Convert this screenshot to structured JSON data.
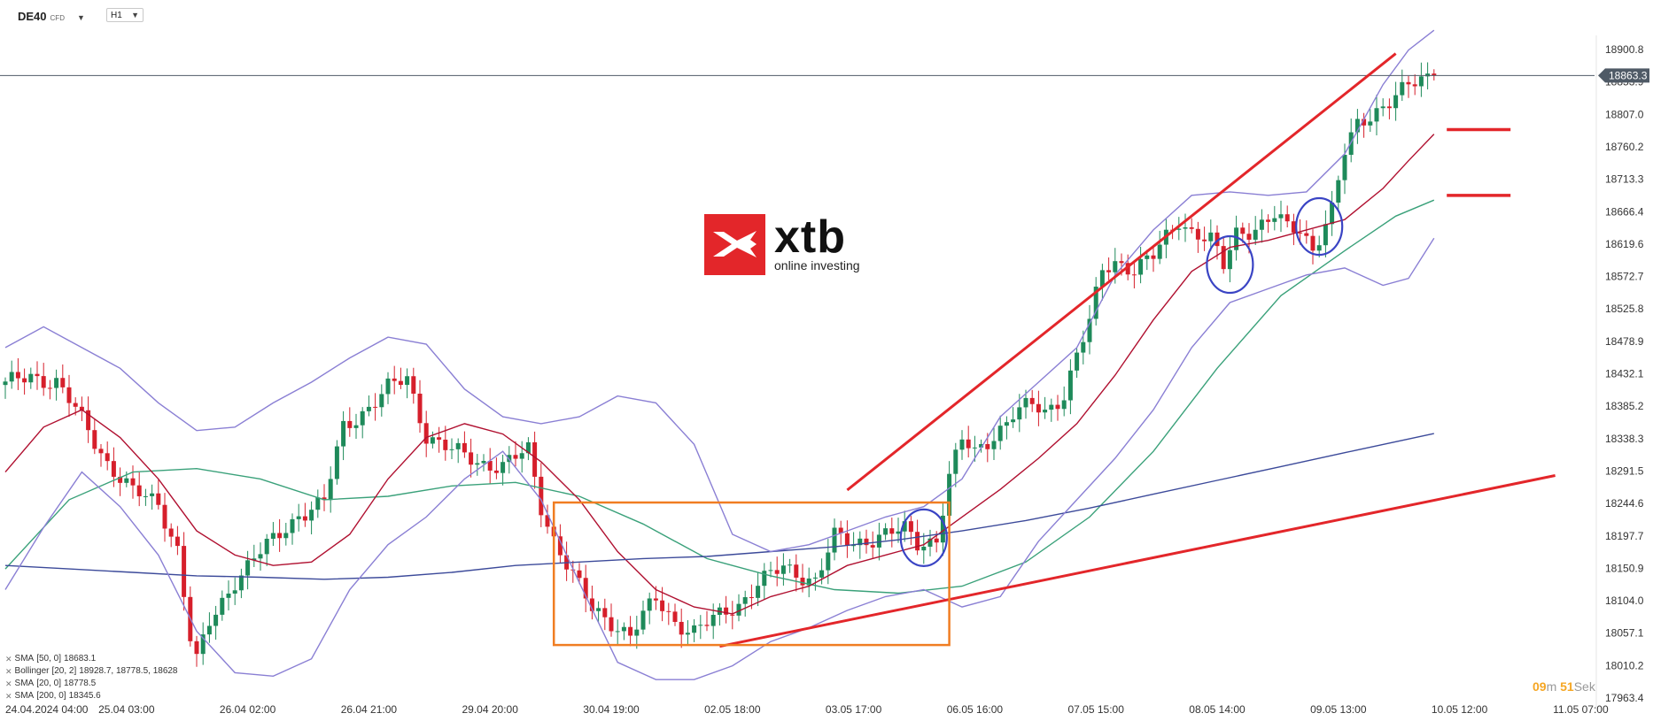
{
  "header": {
    "symbol": "DE40",
    "instrument_type": "CFD",
    "timeframe": "H1"
  },
  "logo": {
    "brand": "xtb",
    "tagline": "online investing",
    "color": "#e3262a"
  },
  "price_axis": {
    "labels": [
      "18900.8",
      "18853.9",
      "18807.0",
      "18760.2",
      "18713.3",
      "18666.4",
      "18619.6",
      "18572.7",
      "18525.8",
      "18478.9",
      "18432.1",
      "18385.2",
      "18338.3",
      "18291.5",
      "18244.6",
      "18197.7",
      "18150.9",
      "18104.0",
      "18057.1",
      "18010.2",
      "17963.4"
    ],
    "current_price": "18863.3"
  },
  "time_axis": {
    "labels": [
      "24.04.2024 04:00",
      "25.04 03:00",
      "26.04 02:00",
      "26.04 21:00",
      "29.04 20:00",
      "30.04 19:00",
      "02.05 18:00",
      "03.05 17:00",
      "06.05 16:00",
      "07.05 15:00",
      "08.05 14:00",
      "09.05 13:00",
      "10.05 12:00",
      "11.05 07:00"
    ]
  },
  "legend": {
    "items": [
      {
        "label": "SMA",
        "params": "[50, 0]",
        "value": "18683.1"
      },
      {
        "label": "Bollinger",
        "params": "[20, 2]",
        "value": "18928.7,  18778.5,  18628"
      },
      {
        "label": "SMA",
        "params": "[20, 0]",
        "value": "18778.5"
      },
      {
        "label": "SMA",
        "params": "[200, 0]",
        "value": "18345.6"
      }
    ]
  },
  "timer": {
    "minutes": "09",
    "m_unit": "m",
    "seconds": "51",
    "s_unit": "Sek"
  },
  "colors": {
    "bull": "#1e8a5a",
    "bear": "#d61f2b",
    "bollinger": "#8a7fd4",
    "sma20": "#b01030",
    "sma50": "#3aa17a",
    "sma200": "#3c4a9a",
    "trend": "#e3262a",
    "box": "#f07d22",
    "circle": "#3a44c4"
  },
  "chart_data": {
    "type": "candlestick",
    "instrument": "DE40",
    "timeframe": "H1",
    "ylim": [
      17963.4,
      18920
    ],
    "y_ticks": [
      18900.8,
      18853.9,
      18807.0,
      18760.2,
      18713.3,
      18666.4,
      18619.6,
      18572.7,
      18525.8,
      18478.9,
      18432.1,
      18385.2,
      18338.3,
      18291.5,
      18244.6,
      18197.7,
      18150.9,
      18104.0,
      18057.1,
      18010.2,
      17963.4
    ],
    "x_ticks": [
      "24.04.2024 04:00",
      "25.04 03:00",
      "26.04 02:00",
      "26.04 21:00",
      "29.04 20:00",
      "30.04 19:00",
      "02.05 18:00",
      "03.05 17:00",
      "06.05 16:00",
      "07.05 15:00",
      "08.05 14:00",
      "09.05 13:00",
      "10.05 12:00",
      "11.05 07:00"
    ],
    "x_tick_index": [
      0,
      19,
      38,
      57,
      76,
      95,
      114,
      133,
      152,
      171,
      190,
      209,
      228,
      247
    ],
    "price_path": [
      [
        0,
        18415
      ],
      [
        4,
        18430
      ],
      [
        8,
        18420
      ],
      [
        12,
        18365
      ],
      [
        16,
        18305
      ],
      [
        20,
        18260
      ],
      [
        24,
        18245
      ],
      [
        27,
        18180
      ],
      [
        29,
        18050
      ],
      [
        30,
        18015
      ],
      [
        32,
        18070
      ],
      [
        36,
        18135
      ],
      [
        39,
        18165
      ],
      [
        42,
        18190
      ],
      [
        46,
        18230
      ],
      [
        50,
        18245
      ],
      [
        53,
        18355
      ],
      [
        57,
        18385
      ],
      [
        60,
        18410
      ],
      [
        63,
        18425
      ],
      [
        66,
        18345
      ],
      [
        70,
        18320
      ],
      [
        74,
        18305
      ],
      [
        78,
        18300
      ],
      [
        82,
        18320
      ],
      [
        84,
        18240
      ],
      [
        86,
        18195
      ],
      [
        89,
        18140
      ],
      [
        92,
        18090
      ],
      [
        95,
        18075
      ],
      [
        98,
        18055
      ],
      [
        102,
        18105
      ],
      [
        105,
        18075
      ],
      [
        108,
        18060
      ],
      [
        111,
        18075
      ],
      [
        115,
        18100
      ],
      [
        118,
        18130
      ],
      [
        122,
        18150
      ],
      [
        127,
        18135
      ],
      [
        130,
        18195
      ],
      [
        133,
        18185
      ],
      [
        137,
        18200
      ],
      [
        141,
        18205
      ],
      [
        143,
        18185
      ],
      [
        146,
        18195
      ],
      [
        148,
        18285
      ],
      [
        150,
        18335
      ],
      [
        152,
        18315
      ],
      [
        155,
        18345
      ],
      [
        158,
        18375
      ],
      [
        161,
        18385
      ],
      [
        163,
        18375
      ],
      [
        166,
        18405
      ],
      [
        168,
        18460
      ],
      [
        170,
        18505
      ],
      [
        172,
        18580
      ],
      [
        174,
        18595
      ],
      [
        177,
        18585
      ],
      [
        180,
        18600
      ],
      [
        184,
        18655
      ],
      [
        186,
        18640
      ],
      [
        189,
        18625
      ],
      [
        191,
        18585
      ],
      [
        193,
        18635
      ],
      [
        196,
        18645
      ],
      [
        199,
        18660
      ],
      [
        201,
        18640
      ],
      [
        203,
        18640
      ],
      [
        205,
        18615
      ],
      [
        208,
        18670
      ],
      [
        210,
        18750
      ],
      [
        212,
        18790
      ],
      [
        215,
        18815
      ],
      [
        218,
        18835
      ],
      [
        220,
        18845
      ],
      [
        222,
        18855
      ],
      [
        224,
        18863.3
      ]
    ],
    "series": [
      {
        "name": "SMA [50, 0]",
        "color": "#3aa17a",
        "points": [
          [
            0,
            18150
          ],
          [
            10,
            18250
          ],
          [
            20,
            18290
          ],
          [
            30,
            18295
          ],
          [
            40,
            18280
          ],
          [
            50,
            18250
          ],
          [
            60,
            18255
          ],
          [
            70,
            18270
          ],
          [
            80,
            18275
          ],
          [
            90,
            18255
          ],
          [
            100,
            18215
          ],
          [
            110,
            18165
          ],
          [
            120,
            18140
          ],
          [
            130,
            18120
          ],
          [
            140,
            18115
          ],
          [
            150,
            18125
          ],
          [
            160,
            18160
          ],
          [
            170,
            18225
          ],
          [
            180,
            18320
          ],
          [
            190,
            18440
          ],
          [
            200,
            18545
          ],
          [
            210,
            18610
          ],
          [
            218,
            18660
          ],
          [
            224,
            18683.1
          ]
        ]
      },
      {
        "name": "SMA [20, 0]",
        "color": "#b01030",
        "points": [
          [
            0,
            18290
          ],
          [
            6,
            18355
          ],
          [
            12,
            18380
          ],
          [
            18,
            18340
          ],
          [
            24,
            18280
          ],
          [
            30,
            18205
          ],
          [
            36,
            18170
          ],
          [
            42,
            18155
          ],
          [
            48,
            18160
          ],
          [
            54,
            18200
          ],
          [
            60,
            18280
          ],
          [
            66,
            18340
          ],
          [
            72,
            18360
          ],
          [
            78,
            18345
          ],
          [
            84,
            18305
          ],
          [
            90,
            18250
          ],
          [
            96,
            18175
          ],
          [
            102,
            18120
          ],
          [
            108,
            18095
          ],
          [
            114,
            18085
          ],
          [
            120,
            18110
          ],
          [
            126,
            18125
          ],
          [
            132,
            18155
          ],
          [
            138,
            18170
          ],
          [
            144,
            18185
          ],
          [
            150,
            18225
          ],
          [
            156,
            18265
          ],
          [
            162,
            18310
          ],
          [
            168,
            18360
          ],
          [
            174,
            18430
          ],
          [
            180,
            18510
          ],
          [
            186,
            18580
          ],
          [
            192,
            18615
          ],
          [
            198,
            18625
          ],
          [
            204,
            18640
          ],
          [
            210,
            18655
          ],
          [
            216,
            18700
          ],
          [
            220,
            18740
          ],
          [
            224,
            18778.5
          ]
        ]
      },
      {
        "name": "SMA [200, 0]",
        "color": "#3c4a9a",
        "points": [
          [
            0,
            18155
          ],
          [
            10,
            18150
          ],
          [
            20,
            18145
          ],
          [
            30,
            18140
          ],
          [
            40,
            18138
          ],
          [
            50,
            18135
          ],
          [
            60,
            18138
          ],
          [
            70,
            18145
          ],
          [
            80,
            18155
          ],
          [
            90,
            18160
          ],
          [
            100,
            18165
          ],
          [
            110,
            18168
          ],
          [
            120,
            18175
          ],
          [
            130,
            18182
          ],
          [
            140,
            18192
          ],
          [
            150,
            18205
          ],
          [
            160,
            18220
          ],
          [
            170,
            18238
          ],
          [
            180,
            18258
          ],
          [
            190,
            18278
          ],
          [
            200,
            18298
          ],
          [
            210,
            18318
          ],
          [
            224,
            18345.6
          ]
        ]
      },
      {
        "name": "Bollinger [20, 2] upper",
        "color": "#8a7fd4",
        "points": [
          [
            0,
            18470
          ],
          [
            6,
            18500
          ],
          [
            12,
            18470
          ],
          [
            18,
            18440
          ],
          [
            24,
            18390
          ],
          [
            30,
            18350
          ],
          [
            36,
            18355
          ],
          [
            42,
            18390
          ],
          [
            48,
            18420
          ],
          [
            54,
            18455
          ],
          [
            60,
            18485
          ],
          [
            66,
            18475
          ],
          [
            72,
            18410
          ],
          [
            78,
            18370
          ],
          [
            84,
            18360
          ],
          [
            90,
            18370
          ],
          [
            96,
            18400
          ],
          [
            102,
            18390
          ],
          [
            108,
            18330
          ],
          [
            114,
            18200
          ],
          [
            120,
            18175
          ],
          [
            126,
            18185
          ],
          [
            132,
            18205
          ],
          [
            138,
            18225
          ],
          [
            144,
            18240
          ],
          [
            150,
            18280
          ],
          [
            156,
            18370
          ],
          [
            162,
            18420
          ],
          [
            168,
            18470
          ],
          [
            174,
            18575
          ],
          [
            180,
            18640
          ],
          [
            186,
            18690
          ],
          [
            192,
            18695
          ],
          [
            198,
            18690
          ],
          [
            204,
            18695
          ],
          [
            210,
            18750
          ],
          [
            216,
            18850
          ],
          [
            220,
            18900
          ],
          [
            224,
            18928.7
          ]
        ]
      },
      {
        "name": "Bollinger [20, 2] lower",
        "color": "#8a7fd4",
        "points": [
          [
            0,
            18120
          ],
          [
            6,
            18210
          ],
          [
            12,
            18290
          ],
          [
            18,
            18240
          ],
          [
            24,
            18170
          ],
          [
            30,
            18060
          ],
          [
            36,
            18000
          ],
          [
            42,
            17995
          ],
          [
            48,
            18020
          ],
          [
            54,
            18120
          ],
          [
            60,
            18185
          ],
          [
            66,
            18225
          ],
          [
            72,
            18280
          ],
          [
            78,
            18320
          ],
          [
            84,
            18250
          ],
          [
            90,
            18130
          ],
          [
            96,
            18015
          ],
          [
            102,
            17990
          ],
          [
            108,
            17990
          ],
          [
            114,
            18010
          ],
          [
            120,
            18045
          ],
          [
            126,
            18065
          ],
          [
            132,
            18090
          ],
          [
            138,
            18110
          ],
          [
            144,
            18120
          ],
          [
            150,
            18095
          ],
          [
            156,
            18110
          ],
          [
            162,
            18190
          ],
          [
            168,
            18250
          ],
          [
            174,
            18310
          ],
          [
            180,
            18380
          ],
          [
            186,
            18470
          ],
          [
            192,
            18535
          ],
          [
            198,
            18555
          ],
          [
            204,
            18575
          ],
          [
            210,
            18585
          ],
          [
            216,
            18560
          ],
          [
            220,
            18570
          ],
          [
            224,
            18628
          ]
        ]
      }
    ],
    "annotations": {
      "trendlines": [
        [
          [
            132,
            18264
          ],
          [
            218,
            18895
          ]
        ],
        [
          [
            112,
            18038
          ],
          [
            243,
            18285
          ]
        ]
      ],
      "levels": [
        {
          "from": 226,
          "to": 236,
          "y": 18785
        },
        {
          "from": 226,
          "to": 236,
          "y": 18690
        }
      ],
      "box": {
        "x0": 86,
        "x1": 148,
        "y0": 18040,
        "y1": 18246
      },
      "circles": [
        {
          "x": 144,
          "y": 18195
        },
        {
          "x": 192,
          "y": 18590
        },
        {
          "x": 206,
          "y": 18645
        }
      ]
    }
  }
}
